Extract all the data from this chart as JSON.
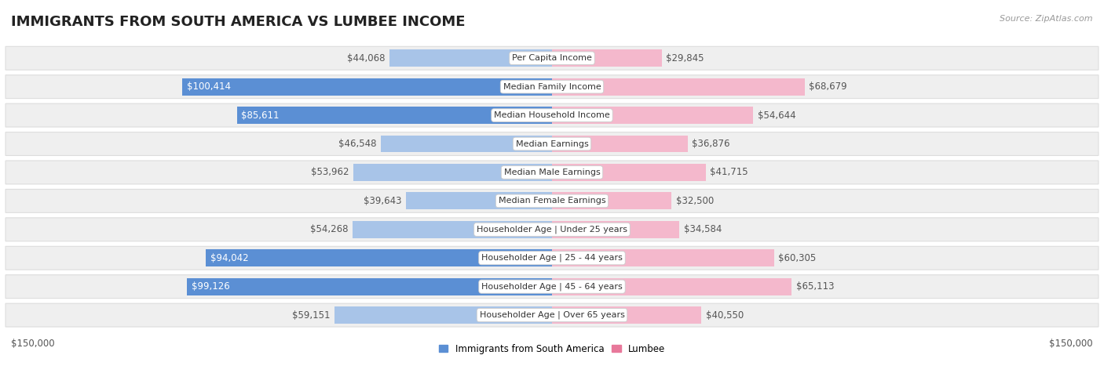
{
  "title": "IMMIGRANTS FROM SOUTH AMERICA VS LUMBEE INCOME",
  "source": "Source: ZipAtlas.com",
  "categories": [
    "Per Capita Income",
    "Median Family Income",
    "Median Household Income",
    "Median Earnings",
    "Median Male Earnings",
    "Median Female Earnings",
    "Householder Age | Under 25 years",
    "Householder Age | 25 - 44 years",
    "Householder Age | 45 - 64 years",
    "Householder Age | Over 65 years"
  ],
  "left_values": [
    44068,
    100414,
    85611,
    46548,
    53962,
    39643,
    54268,
    94042,
    99126,
    59151
  ],
  "right_values": [
    29845,
    68679,
    54644,
    36876,
    41715,
    32500,
    34584,
    60305,
    65113,
    40550
  ],
  "left_labels": [
    "$44,068",
    "$100,414",
    "$85,611",
    "$46,548",
    "$53,962",
    "$39,643",
    "$54,268",
    "$94,042",
    "$99,126",
    "$59,151"
  ],
  "right_labels": [
    "$29,845",
    "$68,679",
    "$54,644",
    "$36,876",
    "$41,715",
    "$32,500",
    "$34,584",
    "$60,305",
    "$65,113",
    "$40,550"
  ],
  "max_value": 150000,
  "left_color_strong": "#5b8fd4",
  "left_color_light": "#a8c4e8",
  "right_color_strong": "#e8789a",
  "right_color_light": "#f4b8cc",
  "threshold": 75000,
  "row_bg": "#efefef",
  "row_border": "#dddddd",
  "legend_left": "Immigrants from South America",
  "legend_right": "Lumbee",
  "xlabel_left": "$150,000",
  "xlabel_right": "$150,000",
  "title_fontsize": 13,
  "label_fontsize": 8.5,
  "category_fontsize": 8.0,
  "source_fontsize": 8.0
}
